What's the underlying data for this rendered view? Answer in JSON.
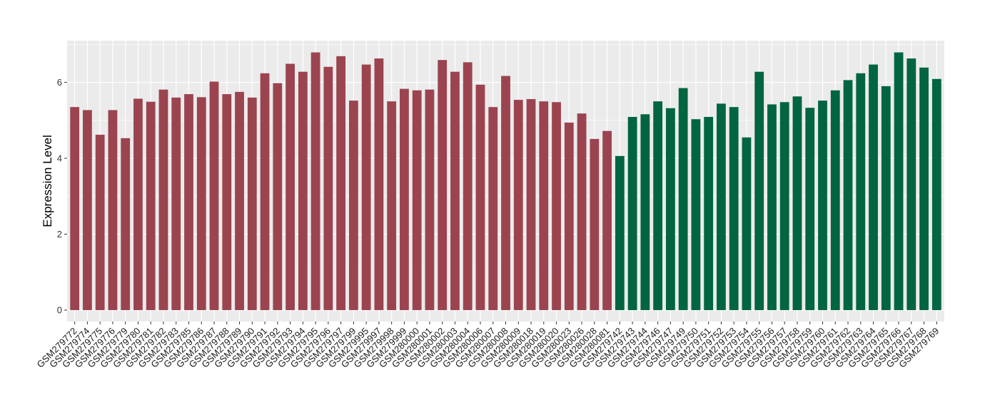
{
  "chart_data": {
    "type": "bar",
    "title": "",
    "xlabel": "",
    "ylabel": "Expression Level",
    "ylim": [
      -0.3,
      7.1
    ],
    "yticks": [
      0,
      2,
      4,
      6
    ],
    "grid": true,
    "legend": "none",
    "colors": {
      "group_1": "#9B4450",
      "group_2": "#006540",
      "panel": "#EBEBEB",
      "grid": "#FFFFFF"
    },
    "categories": [
      "GSM279772",
      "GSM279774",
      "GSM279775",
      "GSM279776",
      "GSM279779",
      "GSM279780",
      "GSM279781",
      "GSM279782",
      "GSM279783",
      "GSM279785",
      "GSM279786",
      "GSM279787",
      "GSM279788",
      "GSM279789",
      "GSM279790",
      "GSM279791",
      "GSM279792",
      "GSM279793",
      "GSM279794",
      "GSM279795",
      "GSM279796",
      "GSM279797",
      "GSM279799",
      "GSM279995",
      "GSM279997",
      "GSM279998",
      "GSM279999",
      "GSM280000",
      "GSM280001",
      "GSM280002",
      "GSM280003",
      "GSM280004",
      "GSM280006",
      "GSM280007",
      "GSM280008",
      "GSM280009",
      "GSM280018",
      "GSM280019",
      "GSM280020",
      "GSM280023",
      "GSM280026",
      "GSM280028",
      "GSM280081",
      "GSM279742",
      "GSM279743",
      "GSM279744",
      "GSM279746",
      "GSM279747",
      "GSM279749",
      "GSM279750",
      "GSM279751",
      "GSM279752",
      "GSM279753",
      "GSM279754",
      "GSM279755",
      "GSM279756",
      "GSM279757",
      "GSM279758",
      "GSM279759",
      "GSM279760",
      "GSM279761",
      "GSM279762",
      "GSM279763",
      "GSM279764",
      "GSM279765",
      "GSM279766",
      "GSM279767",
      "GSM279768",
      "GSM279769"
    ],
    "values": [
      5.35,
      5.27,
      4.62,
      5.27,
      4.53,
      5.57,
      5.49,
      5.81,
      5.6,
      5.69,
      5.61,
      6.02,
      5.69,
      5.75,
      5.6,
      6.24,
      5.98,
      6.49,
      6.28,
      6.79,
      6.41,
      6.69,
      5.52,
      6.47,
      6.63,
      5.5,
      5.83,
      5.79,
      5.81,
      6.59,
      6.28,
      6.53,
      5.94,
      5.35,
      6.17,
      5.54,
      5.56,
      5.5,
      5.48,
      4.94,
      5.18,
      4.51,
      4.72,
      4.06,
      5.09,
      5.16,
      5.5,
      5.32,
      5.85,
      5.03,
      5.09,
      5.44,
      5.35,
      4.55,
      6.28,
      5.42,
      5.48,
      5.63,
      5.33,
      5.52,
      5.79,
      6.06,
      6.24,
      6.47,
      5.9,
      6.79,
      6.63,
      6.39,
      6.09
    ],
    "group": [
      1,
      1,
      1,
      1,
      1,
      1,
      1,
      1,
      1,
      1,
      1,
      1,
      1,
      1,
      1,
      1,
      1,
      1,
      1,
      1,
      1,
      1,
      1,
      1,
      1,
      1,
      1,
      1,
      1,
      1,
      1,
      1,
      1,
      1,
      1,
      1,
      1,
      1,
      1,
      1,
      1,
      1,
      1,
      2,
      2,
      2,
      2,
      2,
      2,
      2,
      2,
      2,
      2,
      2,
      2,
      2,
      2,
      2,
      2,
      2,
      2,
      2,
      2,
      2,
      2,
      2,
      2,
      2,
      2
    ]
  }
}
